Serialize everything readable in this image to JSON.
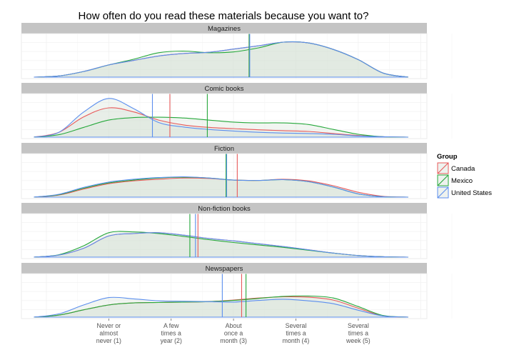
{
  "chart_data": {
    "type": "area",
    "title": "How often do you read these materials because you want to?",
    "xlabel": "",
    "ylabel": "",
    "xlim": [
      -0.4,
      6.1
    ],
    "x_ticks": [
      1,
      2,
      3,
      4,
      5
    ],
    "x_tick_labels": [
      [
        "Never or",
        "almost",
        "never (1)"
      ],
      [
        "A few",
        "times a",
        "year (2)"
      ],
      [
        "About",
        "once a",
        "month (3)"
      ],
      [
        "Several",
        "times a",
        "month (4)"
      ],
      [
        "Several",
        "times a",
        "week (5)"
      ]
    ],
    "legend": {
      "title": "Group",
      "position": "right"
    },
    "grid": true,
    "colors": {
      "Canada": "#E8595A",
      "Mexico": "#26A83B",
      "United States": "#5B8EEE"
    },
    "series_names": [
      "Canada",
      "Mexico",
      "United States"
    ],
    "x": [
      -0.2,
      0.2,
      0.6,
      1.0,
      1.4,
      1.8,
      2.2,
      2.6,
      3.0,
      3.4,
      3.8,
      4.2,
      4.6,
      5.0,
      5.4,
      5.8
    ],
    "panels": [
      {
        "label": "Magazines",
        "ymax": 1.0,
        "series": {
          "Canada": [
            0.0,
            0.03,
            0.14,
            0.3,
            0.41,
            0.52,
            0.58,
            0.61,
            0.69,
            0.77,
            0.86,
            0.84,
            0.68,
            0.43,
            0.1,
            0.0
          ],
          "Mexico": [
            0.0,
            0.03,
            0.14,
            0.3,
            0.44,
            0.6,
            0.64,
            0.6,
            0.62,
            0.72,
            0.86,
            0.84,
            0.68,
            0.43,
            0.1,
            0.0
          ],
          "United States": [
            0.0,
            0.03,
            0.14,
            0.3,
            0.41,
            0.52,
            0.58,
            0.61,
            0.69,
            0.77,
            0.86,
            0.84,
            0.68,
            0.43,
            0.1,
            0.0
          ]
        },
        "means": {
          "Canada": 3.25,
          "Mexico": 3.25,
          "United States": 3.26
        }
      },
      {
        "label": "Comic books",
        "ymax": 1.0,
        "series": {
          "Canada": [
            0.0,
            0.12,
            0.5,
            0.72,
            0.62,
            0.42,
            0.3,
            0.24,
            0.21,
            0.18,
            0.16,
            0.14,
            0.09,
            0.04,
            0.01,
            0.0
          ],
          "Mexico": [
            0.0,
            0.06,
            0.24,
            0.42,
            0.48,
            0.49,
            0.47,
            0.42,
            0.37,
            0.35,
            0.35,
            0.31,
            0.19,
            0.07,
            0.01,
            0.0
          ],
          "United States": [
            0.0,
            0.12,
            0.62,
            0.95,
            0.7,
            0.36,
            0.25,
            0.19,
            0.15,
            0.12,
            0.1,
            0.09,
            0.07,
            0.03,
            0.01,
            0.0
          ]
        },
        "means": {
          "Canada": 1.98,
          "Mexico": 2.58,
          "United States": 1.7
        }
      },
      {
        "label": "Fiction",
        "ymax": 1.0,
        "series": {
          "Canada": [
            0.0,
            0.05,
            0.2,
            0.33,
            0.4,
            0.44,
            0.47,
            0.46,
            0.42,
            0.41,
            0.44,
            0.4,
            0.28,
            0.12,
            0.02,
            0.0
          ],
          "Mexico": [
            0.0,
            0.06,
            0.22,
            0.35,
            0.42,
            0.47,
            0.49,
            0.47,
            0.42,
            0.41,
            0.43,
            0.38,
            0.25,
            0.08,
            0.01,
            0.0
          ],
          "United States": [
            0.0,
            0.07,
            0.24,
            0.37,
            0.44,
            0.48,
            0.5,
            0.47,
            0.42,
            0.41,
            0.43,
            0.38,
            0.25,
            0.08,
            0.01,
            0.0
          ]
        },
        "means": {
          "Canada": 3.06,
          "Mexico": 2.88,
          "United States": 2.89
        }
      },
      {
        "label": "Non-fiction books",
        "ymax": 1.0,
        "series": {
          "Canada": [
            0.0,
            0.05,
            0.22,
            0.52,
            0.58,
            0.6,
            0.54,
            0.46,
            0.4,
            0.33,
            0.26,
            0.18,
            0.1,
            0.04,
            0.01,
            0.0
          ],
          "Mexico": [
            0.0,
            0.06,
            0.28,
            0.6,
            0.62,
            0.58,
            0.51,
            0.43,
            0.36,
            0.3,
            0.24,
            0.17,
            0.1,
            0.04,
            0.01,
            0.0
          ],
          "United States": [
            0.0,
            0.05,
            0.22,
            0.52,
            0.58,
            0.6,
            0.54,
            0.46,
            0.4,
            0.33,
            0.26,
            0.18,
            0.1,
            0.04,
            0.01,
            0.0
          ]
        },
        "means": {
          "Canada": 2.43,
          "Mexico": 2.3,
          "United States": 2.39
        }
      },
      {
        "label": "Newspapers",
        "ymax": 1.0,
        "series": {
          "Canada": [
            0.0,
            0.05,
            0.18,
            0.3,
            0.35,
            0.36,
            0.37,
            0.38,
            0.42,
            0.47,
            0.5,
            0.49,
            0.42,
            0.22,
            0.03,
            0.0
          ],
          "Mexico": [
            0.0,
            0.05,
            0.18,
            0.3,
            0.35,
            0.36,
            0.37,
            0.38,
            0.41,
            0.46,
            0.51,
            0.52,
            0.47,
            0.26,
            0.04,
            0.0
          ],
          "United States": [
            0.0,
            0.08,
            0.3,
            0.48,
            0.45,
            0.4,
            0.39,
            0.38,
            0.37,
            0.41,
            0.44,
            0.4,
            0.33,
            0.17,
            0.03,
            0.0
          ]
        },
        "means": {
          "Canada": 3.13,
          "Mexico": 3.2,
          "United States": 2.82
        }
      }
    ]
  }
}
